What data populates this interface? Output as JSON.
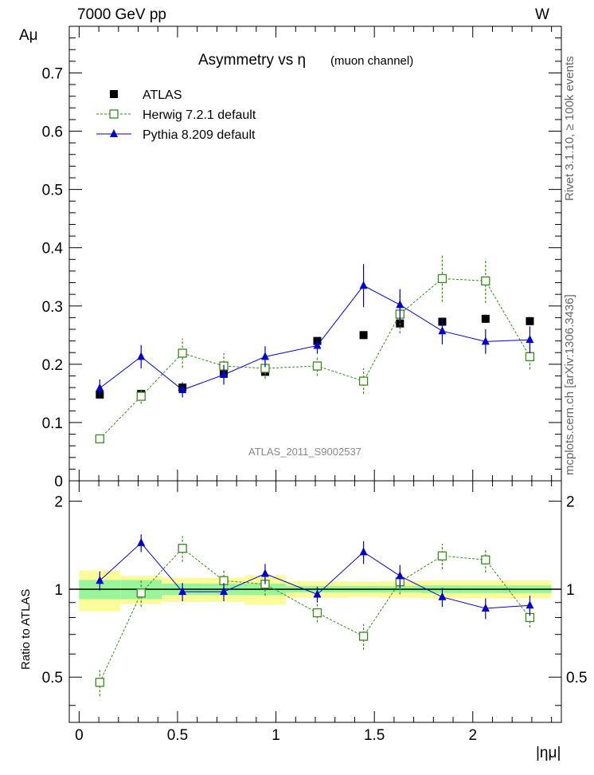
{
  "header": {
    "left": "7000 GeV pp",
    "right": "W"
  },
  "sidebar": {
    "rivet": "Rivet 3.1.10, ≥ 100k events",
    "mcplots": "mcplots.cern.ch [arXiv:1306.3436]"
  },
  "colors": {
    "atlas": "#000000",
    "herwig": "#3a8a1a",
    "pythia": "#0000cc",
    "band_inner": "#99f599",
    "band_outer": "#fbfb9a"
  },
  "chart_data": {
    "type": "scatter",
    "title": "Asymmetry vs η",
    "title_suffix": "(muon channel)",
    "analysis_label": "ATLAS_2011_S9002537",
    "xlabel": "|ημ|",
    "ylabel": "Aμ",
    "ratio_ylabel": "Ratio to ATLAS",
    "xlim": [
      -0.05,
      2.45
    ],
    "ylim": [
      0,
      0.78
    ],
    "ratio_ylim": [
      0.35,
      2.35
    ],
    "ratio_log": true,
    "xticks": [
      "0",
      "0.5",
      "1",
      "1.5",
      "2"
    ],
    "xtick_values": [
      0,
      0.5,
      1,
      1.5,
      2
    ],
    "yticks": [
      "0",
      "0.1",
      "0.2",
      "0.3",
      "0.4",
      "0.5",
      "0.6",
      "0.7"
    ],
    "ytick_values": [
      0,
      0.1,
      0.2,
      0.3,
      0.4,
      0.5,
      0.6,
      0.7
    ],
    "ratio_yticks": [
      "0.5",
      "1",
      "2"
    ],
    "ratio_ytick_values": [
      0.5,
      1,
      2
    ],
    "legend_position": "top-left",
    "bins": [
      [
        0,
        0.21
      ],
      [
        0.21,
        0.42
      ],
      [
        0.42,
        0.63
      ],
      [
        0.63,
        0.84
      ],
      [
        0.84,
        1.05
      ],
      [
        1.05,
        1.37
      ],
      [
        1.37,
        1.52
      ],
      [
        1.52,
        1.74
      ],
      [
        1.74,
        1.95
      ],
      [
        1.95,
        2.18
      ],
      [
        2.18,
        2.4
      ]
    ],
    "x": [
      0.105,
      0.315,
      0.525,
      0.735,
      0.945,
      1.21,
      1.445,
      1.63,
      1.845,
      2.065,
      2.29
    ],
    "series": [
      {
        "name": "ATLAS",
        "values": [
          0.148,
          0.149,
          0.16,
          0.185,
          0.187,
          0.24,
          0.25,
          0.27,
          0.273,
          0.278,
          0.274
        ],
        "errors": [
          0.006,
          0.006,
          0.006,
          0.006,
          0.006,
          0.006,
          0.006,
          0.007,
          0.007,
          0.007,
          0.007
        ],
        "band_stat": [
          0.15,
          0.15,
          0.09,
          0.09,
          0.09,
          0.05,
          0.05,
          0.05,
          0.06,
          0.06,
          0.06
        ],
        "band_tot": [
          0.32,
          0.22,
          0.19,
          0.19,
          0.23,
          0.13,
          0.12,
          0.13,
          0.14,
          0.14,
          0.14
        ]
      },
      {
        "name": "Herwig 7.2.1 default",
        "values": [
          0.072,
          0.145,
          0.219,
          0.197,
          0.193,
          0.197,
          0.171,
          0.286,
          0.347,
          0.343,
          0.213
        ],
        "errors": [
          0.006,
          0.013,
          0.025,
          0.022,
          0.018,
          0.017,
          0.022,
          0.033,
          0.04,
          0.038,
          0.022
        ],
        "ratio": [
          0.48,
          0.97,
          1.38,
          1.07,
          1.04,
          0.83,
          0.69,
          1.06,
          1.3,
          1.26,
          0.8
        ],
        "ratio_err": [
          0.05,
          0.1,
          0.14,
          0.1,
          0.09,
          0.06,
          0.07,
          0.1,
          0.13,
          0.12,
          0.06
        ]
      },
      {
        "name": "Pythia 8.209 default",
        "values": [
          0.159,
          0.213,
          0.156,
          0.182,
          0.213,
          0.232,
          0.335,
          0.302,
          0.257,
          0.239,
          0.242
        ],
        "errors": [
          0.015,
          0.02,
          0.013,
          0.017,
          0.018,
          0.014,
          0.037,
          0.027,
          0.023,
          0.021,
          0.023
        ],
        "ratio": [
          1.07,
          1.44,
          0.98,
          0.98,
          1.13,
          0.96,
          1.34,
          1.11,
          0.94,
          0.86,
          0.88
        ],
        "ratio_err": [
          0.08,
          0.1,
          0.07,
          0.07,
          0.09,
          0.06,
          0.12,
          0.1,
          0.07,
          0.07,
          0.07
        ]
      }
    ]
  }
}
